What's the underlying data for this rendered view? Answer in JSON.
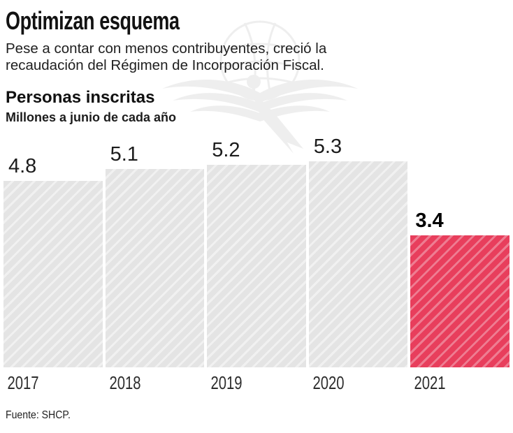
{
  "header": {
    "title": "Optimizan esquema",
    "subtitle_line1": "Pese a contar con menos contribuyentes, creció la",
    "subtitle_line2": "recaudación del Régimen de Incorporación Fiscal."
  },
  "section": {
    "heading": "Personas inscritas",
    "units": "Millones a junio de cada año"
  },
  "chart_data": {
    "type": "bar",
    "title": "Personas inscritas",
    "subtitle": "Millones a junio de cada año",
    "categories": [
      "2017",
      "2018",
      "2019",
      "2020",
      "2021"
    ],
    "values": [
      4.8,
      5.1,
      5.2,
      5.3,
      3.4
    ],
    "value_labels": [
      "4.8",
      "5.1",
      "5.2",
      "5.3",
      "3.4"
    ],
    "xlabel": "",
    "ylabel": "",
    "ylim": [
      0,
      5.3
    ],
    "grid": false,
    "legend": false,
    "highlight_index": 4,
    "bar_color": "#e4e4e4",
    "bar_stripe_color": "#f1f1f1",
    "highlight_color": "#e83e5c",
    "highlight_stripe_color": "#ee7d92",
    "hatch_direction": "diagonal-forward"
  },
  "watermark": {
    "icon": "eagle-globe-watermark"
  },
  "source": "Fuente: SHCP."
}
